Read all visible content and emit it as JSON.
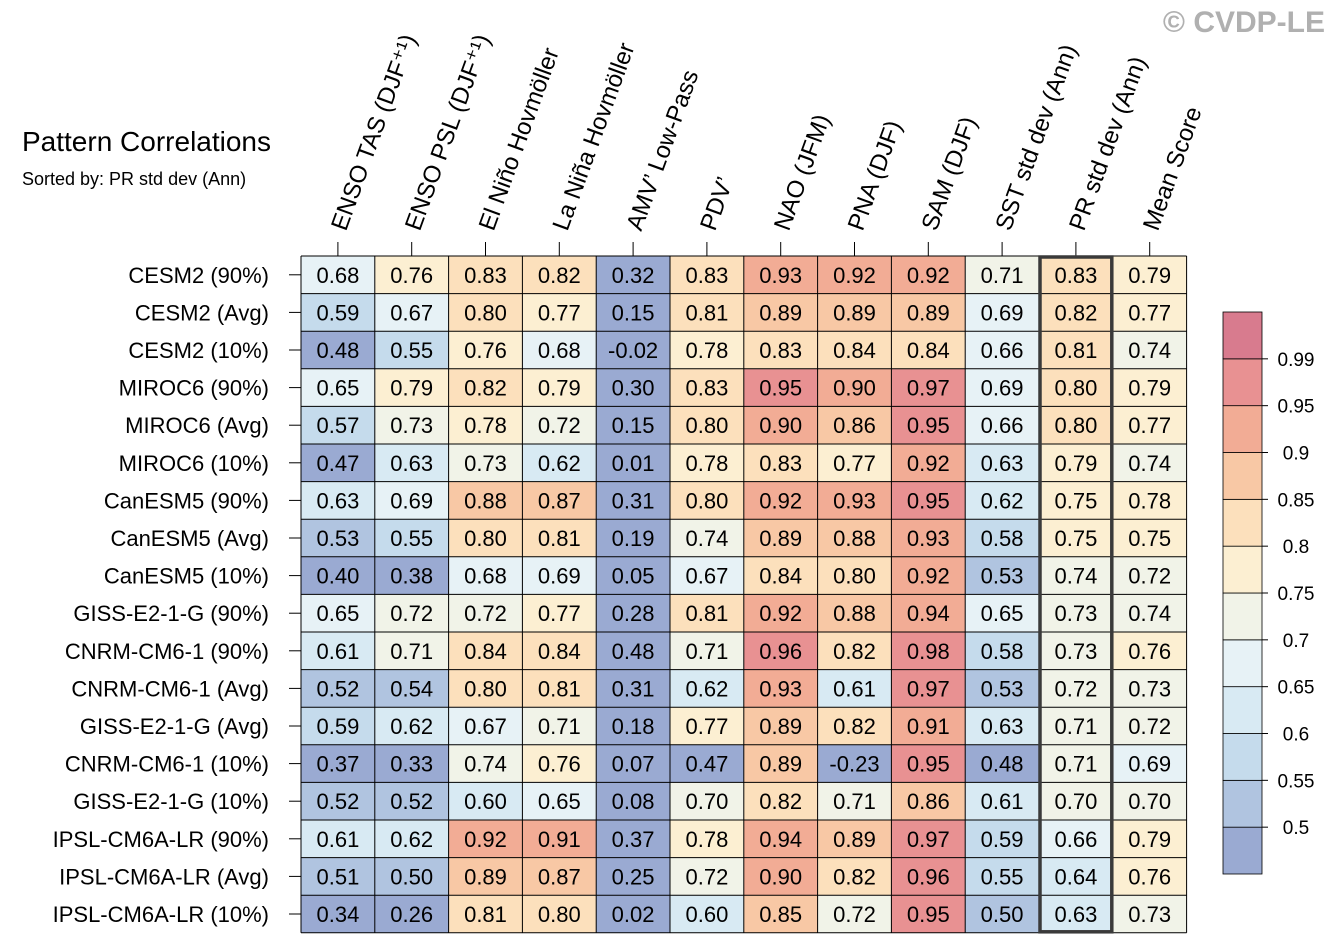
{
  "watermark": "© CVDP-LE",
  "chart_data": {
    "type": "heatmap",
    "title": "Pattern Correlations",
    "subtitle": "Sorted by: PR std dev (Ann)",
    "columns": [
      "ENSO TAS (DJF⁺¹)",
      "ENSO PSL (DJF⁺¹)",
      "El Niño Hovmöller",
      "La Niña Hovmöller",
      "AMV’ Low-Pass",
      "PDV’",
      "NAO (JFM)",
      "PNA (DJF)",
      "SAM (DJF)",
      "SST std dev (Ann)",
      "PR std dev (Ann)",
      "Mean Score"
    ],
    "highlighted_column": "PR std dev (Ann)",
    "rows": [
      {
        "label": "CESM2 (90%)",
        "values": [
          "0.68",
          "0.76",
          "0.83",
          "0.82",
          "0.32",
          "0.83",
          "0.93",
          "0.92",
          "0.92",
          "0.71",
          "0.83",
          "0.79"
        ]
      },
      {
        "label": "CESM2 (Avg)",
        "values": [
          "0.59",
          "0.67",
          "0.80",
          "0.77",
          "0.15",
          "0.81",
          "0.89",
          "0.89",
          "0.89",
          "0.69",
          "0.82",
          "0.77"
        ]
      },
      {
        "label": "CESM2 (10%)",
        "values": [
          "0.48",
          "0.55",
          "0.76",
          "0.68",
          "-0.02",
          "0.78",
          "0.83",
          "0.84",
          "0.84",
          "0.66",
          "0.81",
          "0.74"
        ]
      },
      {
        "label": "MIROC6 (90%)",
        "values": [
          "0.65",
          "0.79",
          "0.82",
          "0.79",
          "0.30",
          "0.83",
          "0.95",
          "0.90",
          "0.97",
          "0.69",
          "0.80",
          "0.79"
        ]
      },
      {
        "label": "MIROC6 (Avg)",
        "values": [
          "0.57",
          "0.73",
          "0.78",
          "0.72",
          "0.15",
          "0.80",
          "0.90",
          "0.86",
          "0.95",
          "0.66",
          "0.80",
          "0.77"
        ]
      },
      {
        "label": "MIROC6 (10%)",
        "values": [
          "0.47",
          "0.63",
          "0.73",
          "0.62",
          "0.01",
          "0.78",
          "0.83",
          "0.77",
          "0.92",
          "0.63",
          "0.79",
          "0.74"
        ]
      },
      {
        "label": "CanESM5 (90%)",
        "values": [
          "0.63",
          "0.69",
          "0.88",
          "0.87",
          "0.31",
          "0.80",
          "0.92",
          "0.93",
          "0.95",
          "0.62",
          "0.75",
          "0.78"
        ]
      },
      {
        "label": "CanESM5 (Avg)",
        "values": [
          "0.53",
          "0.55",
          "0.80",
          "0.81",
          "0.19",
          "0.74",
          "0.89",
          "0.88",
          "0.93",
          "0.58",
          "0.75",
          "0.75"
        ]
      },
      {
        "label": "CanESM5 (10%)",
        "values": [
          "0.40",
          "0.38",
          "0.68",
          "0.69",
          "0.05",
          "0.67",
          "0.84",
          "0.80",
          "0.92",
          "0.53",
          "0.74",
          "0.72"
        ]
      },
      {
        "label": "GISS-E2-1-G (90%)",
        "values": [
          "0.65",
          "0.72",
          "0.72",
          "0.77",
          "0.28",
          "0.81",
          "0.92",
          "0.88",
          "0.94",
          "0.65",
          "0.73",
          "0.74"
        ]
      },
      {
        "label": "CNRM-CM6-1 (90%)",
        "values": [
          "0.61",
          "0.71",
          "0.84",
          "0.84",
          "0.48",
          "0.71",
          "0.96",
          "0.82",
          "0.98",
          "0.58",
          "0.73",
          "0.76"
        ]
      },
      {
        "label": "CNRM-CM6-1 (Avg)",
        "values": [
          "0.52",
          "0.54",
          "0.80",
          "0.81",
          "0.31",
          "0.62",
          "0.93",
          "0.61",
          "0.97",
          "0.53",
          "0.72",
          "0.73"
        ]
      },
      {
        "label": "GISS-E2-1-G (Avg)",
        "values": [
          "0.59",
          "0.62",
          "0.67",
          "0.71",
          "0.18",
          "0.77",
          "0.89",
          "0.82",
          "0.91",
          "0.63",
          "0.71",
          "0.72"
        ]
      },
      {
        "label": "CNRM-CM6-1 (10%)",
        "values": [
          "0.37",
          "0.33",
          "0.74",
          "0.76",
          "0.07",
          "0.47",
          "0.89",
          "-0.23",
          "0.95",
          "0.48",
          "0.71",
          "0.69"
        ]
      },
      {
        "label": "GISS-E2-1-G (10%)",
        "values": [
          "0.52",
          "0.52",
          "0.60",
          "0.65",
          "0.08",
          "0.70",
          "0.82",
          "0.71",
          "0.86",
          "0.61",
          "0.70",
          "0.70"
        ]
      },
      {
        "label": "IPSL-CM6A-LR (90%)",
        "values": [
          "0.61",
          "0.62",
          "0.92",
          "0.91",
          "0.37",
          "0.78",
          "0.94",
          "0.89",
          "0.97",
          "0.59",
          "0.66",
          "0.79"
        ]
      },
      {
        "label": "IPSL-CM6A-LR (Avg)",
        "values": [
          "0.51",
          "0.50",
          "0.89",
          "0.87",
          "0.25",
          "0.72",
          "0.90",
          "0.82",
          "0.96",
          "0.55",
          "0.64",
          "0.76"
        ]
      },
      {
        "label": "IPSL-CM6A-LR (10%)",
        "values": [
          "0.34",
          "0.26",
          "0.81",
          "0.80",
          "0.02",
          "0.60",
          "0.85",
          "0.72",
          "0.95",
          "0.50",
          "0.63",
          "0.73"
        ]
      }
    ],
    "colorbar": {
      "tick_labels": [
        "0.5",
        "0.55",
        "0.6",
        "0.65",
        "0.7",
        "0.75",
        "0.8",
        "0.85",
        "0.9",
        "0.95",
        "0.99"
      ],
      "bounds": [
        0.5,
        0.55,
        0.6,
        0.65,
        0.7,
        0.75,
        0.8,
        0.85,
        0.9,
        0.95,
        0.99
      ],
      "colors": [
        "#9aaad2",
        "#b0c4e0",
        "#c5dbec",
        "#d8eaf3",
        "#e7f2f6",
        "#f1f3e8",
        "#fcefd2",
        "#fce0bc",
        "#f8c8a5",
        "#f2ac95",
        "#e89192",
        "#d87b8e"
      ]
    }
  }
}
